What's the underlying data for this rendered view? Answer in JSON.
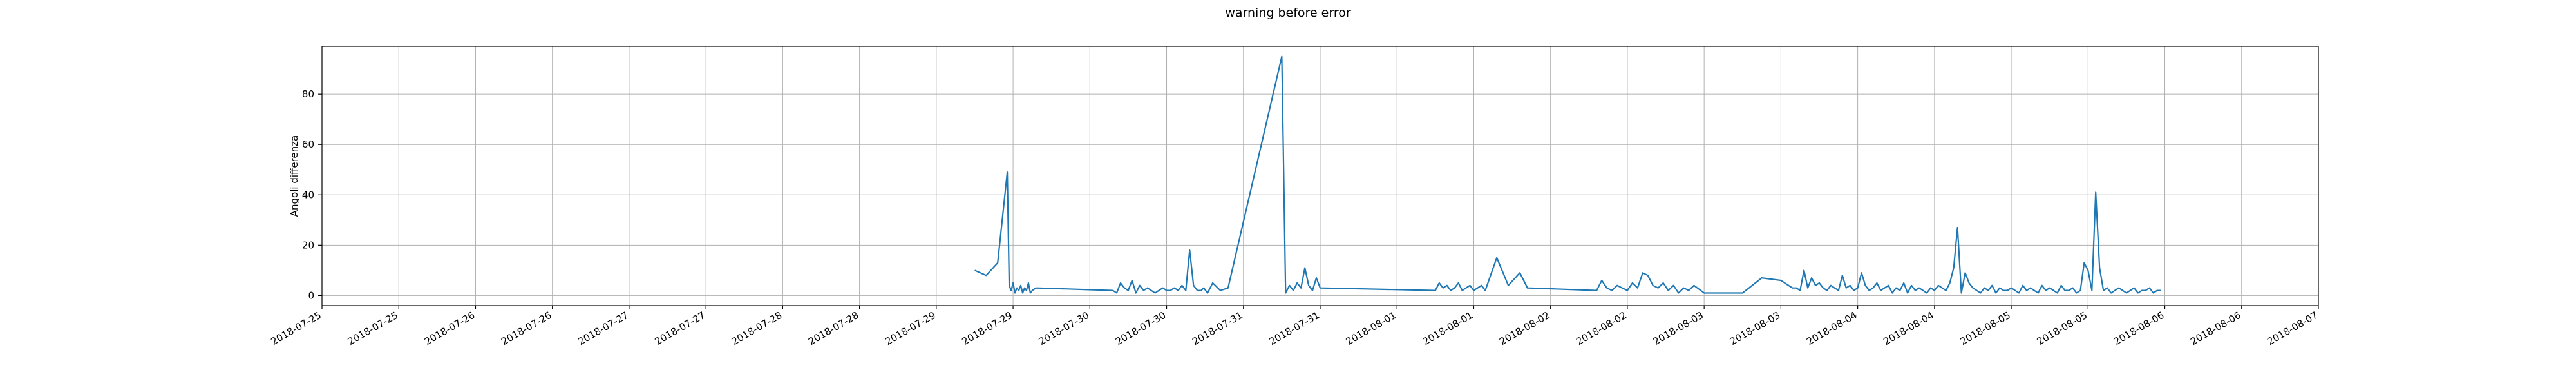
{
  "chart_data": {
    "type": "line",
    "title": "warning before error",
    "xlabel": "",
    "ylabel": "Angoli differenza",
    "xlim": [
      "2018-07-25T00:00",
      "2018-08-07T00:00"
    ],
    "ylim": [
      -4,
      99
    ],
    "grid": true,
    "x_ticks": [
      "2018-07-25T00:00",
      "2018-07-25T12:00",
      "2018-07-26T00:00",
      "2018-07-26T12:00",
      "2018-07-27T00:00",
      "2018-07-27T12:00",
      "2018-07-28T00:00",
      "2018-07-28T12:00",
      "2018-07-29T00:00",
      "2018-07-29T12:00",
      "2018-07-30T00:00",
      "2018-07-30T12:00",
      "2018-07-31T00:00",
      "2018-07-31T12:00",
      "2018-08-01T00:00",
      "2018-08-01T12:00",
      "2018-08-02T00:00",
      "2018-08-02T12:00",
      "2018-08-03T00:00",
      "2018-08-03T12:00",
      "2018-08-04T00:00",
      "2018-08-04T12:00",
      "2018-08-05T00:00",
      "2018-08-05T12:00",
      "2018-08-06T00:00",
      "2018-08-06T12:00",
      "2018-08-07T00:00"
    ],
    "x_tick_labels": [
      "2018-07-25",
      "2018-07-25",
      "2018-07-26",
      "2018-07-26",
      "2018-07-27",
      "2018-07-27",
      "2018-07-28",
      "2018-07-28",
      "2018-07-29",
      "2018-07-29",
      "2018-07-30",
      "2018-07-30",
      "2018-07-31",
      "2018-07-31",
      "2018-08-01",
      "2018-08-01",
      "2018-08-02",
      "2018-08-02",
      "2018-08-03",
      "2018-08-03",
      "2018-08-04",
      "2018-08-04",
      "2018-08-05",
      "2018-08-05",
      "2018-08-06",
      "2018-08-06",
      "2018-08-07"
    ],
    "y_ticks": [
      0,
      20,
      40,
      60,
      80
    ],
    "y_tick_labels": [
      "0",
      "20",
      "40",
      "60",
      "80"
    ],
    "series": [
      {
        "color": "#1f77b4",
        "x": [
          "2018-07-29T06:00",
          "2018-07-29T07:48",
          "2018-07-29T09:36",
          "2018-07-29T11:06",
          "2018-07-29T11:24",
          "2018-07-29T11:42",
          "2018-07-29T12:00",
          "2018-07-29T12:18",
          "2018-07-29T12:36",
          "2018-07-29T12:54",
          "2018-07-29T13:12",
          "2018-07-29T13:30",
          "2018-07-29T13:48",
          "2018-07-29T14:06",
          "2018-07-29T14:24",
          "2018-07-29T14:42",
          "2018-07-29T15:00",
          "2018-07-29T15:36",
          "2018-07-30T03:36",
          "2018-07-30T04:12",
          "2018-07-30T04:48",
          "2018-07-30T05:24",
          "2018-07-30T06:00",
          "2018-07-30T06:36",
          "2018-07-30T07:12",
          "2018-07-30T07:48",
          "2018-07-30T08:24",
          "2018-07-30T09:00",
          "2018-07-30T09:36",
          "2018-07-30T10:12",
          "2018-07-30T10:48",
          "2018-07-30T11:24",
          "2018-07-30T12:00",
          "2018-07-30T12:36",
          "2018-07-30T13:12",
          "2018-07-30T13:48",
          "2018-07-30T14:24",
          "2018-07-30T15:00",
          "2018-07-30T15:36",
          "2018-07-30T16:12",
          "2018-07-30T16:48",
          "2018-07-30T17:24",
          "2018-07-30T17:48",
          "2018-07-30T18:24",
          "2018-07-30T19:12",
          "2018-07-30T20:24",
          "2018-07-30T21:36",
          "2018-07-31T06:00",
          "2018-07-31T06:36",
          "2018-07-31T07:12",
          "2018-07-31T07:48",
          "2018-07-31T08:24",
          "2018-07-31T09:00",
          "2018-07-31T09:36",
          "2018-07-31T10:12",
          "2018-07-31T10:48",
          "2018-07-31T11:24",
          "2018-07-31T12:00",
          "2018-08-01T06:00",
          "2018-08-01T06:36",
          "2018-08-01T07:12",
          "2018-08-01T07:48",
          "2018-08-01T08:24",
          "2018-08-01T09:00",
          "2018-08-01T09:36",
          "2018-08-01T10:12",
          "2018-08-01T10:48",
          "2018-08-01T11:24",
          "2018-08-01T12:00",
          "2018-08-01T12:36",
          "2018-08-01T13:12",
          "2018-08-01T13:48",
          "2018-08-01T15:36",
          "2018-08-01T17:24",
          "2018-08-01T19:12",
          "2018-08-01T20:24",
          "2018-08-02T07:12",
          "2018-08-02T08:00",
          "2018-08-02T08:48",
          "2018-08-02T09:36",
          "2018-08-02T10:24",
          "2018-08-02T11:12",
          "2018-08-02T12:00",
          "2018-08-02T12:48",
          "2018-08-02T13:36",
          "2018-08-02T14:24",
          "2018-08-02T15:12",
          "2018-08-02T16:00",
          "2018-08-02T16:48",
          "2018-08-02T17:36",
          "2018-08-02T18:24",
          "2018-08-02T19:12",
          "2018-08-02T20:00",
          "2018-08-02T20:48",
          "2018-08-02T21:36",
          "2018-08-02T22:24",
          "2018-08-03T00:00",
          "2018-08-03T03:00",
          "2018-08-03T06:00",
          "2018-08-03T09:00",
          "2018-08-03T12:00",
          "2018-08-03T12:36",
          "2018-08-03T13:12",
          "2018-08-03T13:48",
          "2018-08-03T14:24",
          "2018-08-03T15:00",
          "2018-08-03T15:36",
          "2018-08-03T16:12",
          "2018-08-03T16:48",
          "2018-08-03T17:24",
          "2018-08-03T18:00",
          "2018-08-03T18:36",
          "2018-08-03T19:12",
          "2018-08-03T19:48",
          "2018-08-03T20:24",
          "2018-08-03T21:00",
          "2018-08-03T21:36",
          "2018-08-03T22:12",
          "2018-08-03T22:48",
          "2018-08-03T23:24",
          "2018-08-04T00:00",
          "2018-08-04T00:36",
          "2018-08-04T01:12",
          "2018-08-04T01:48",
          "2018-08-04T02:24",
          "2018-08-04T03:00",
          "2018-08-04T03:36",
          "2018-08-04T04:12",
          "2018-08-04T04:48",
          "2018-08-04T05:24",
          "2018-08-04T06:00",
          "2018-08-04T06:36",
          "2018-08-04T07:12",
          "2018-08-04T07:48",
          "2018-08-04T08:24",
          "2018-08-04T09:00",
          "2018-08-04T09:36",
          "2018-08-04T10:12",
          "2018-08-04T10:48",
          "2018-08-04T11:24",
          "2018-08-04T12:00",
          "2018-08-04T12:36",
          "2018-08-04T13:12",
          "2018-08-04T13:48",
          "2018-08-04T14:24",
          "2018-08-04T15:00",
          "2018-08-04T15:36",
          "2018-08-04T16:12",
          "2018-08-04T16:48",
          "2018-08-04T17:24",
          "2018-08-04T18:00",
          "2018-08-04T18:36",
          "2018-08-04T19:12",
          "2018-08-04T19:48",
          "2018-08-04T20:24",
          "2018-08-04T21:00",
          "2018-08-04T21:36",
          "2018-08-04T22:12",
          "2018-08-04T22:48",
          "2018-08-04T23:24",
          "2018-08-05T00:00",
          "2018-08-05T00:36",
          "2018-08-05T01:12",
          "2018-08-05T01:48",
          "2018-08-05T02:24",
          "2018-08-05T03:00",
          "2018-08-05T03:36",
          "2018-08-05T04:12",
          "2018-08-05T04:48",
          "2018-08-05T05:24",
          "2018-08-05T06:00",
          "2018-08-05T06:36",
          "2018-08-05T07:12",
          "2018-08-05T07:48",
          "2018-08-05T08:24",
          "2018-08-05T09:00",
          "2018-08-05T09:36",
          "2018-08-05T10:12",
          "2018-08-05T10:48",
          "2018-08-05T11:24",
          "2018-08-05T12:00",
          "2018-08-05T12:36",
          "2018-08-05T13:12",
          "2018-08-05T13:48",
          "2018-08-05T14:24",
          "2018-08-05T15:00",
          "2018-08-05T15:36",
          "2018-08-05T16:12",
          "2018-08-05T16:48",
          "2018-08-05T17:24",
          "2018-08-05T18:00",
          "2018-08-05T18:36",
          "2018-08-05T19:12",
          "2018-08-05T19:48",
          "2018-08-05T20:24",
          "2018-08-05T21:00",
          "2018-08-05T21:36",
          "2018-08-05T22:12",
          "2018-08-05T22:48",
          "2018-08-05T23:24"
        ],
        "y": [
          10,
          8,
          13,
          49,
          4,
          2,
          5,
          1,
          3,
          2,
          4,
          1,
          3,
          2,
          5,
          1,
          2,
          3,
          2,
          1,
          5,
          3,
          2,
          6,
          1,
          4,
          2,
          3,
          2,
          1,
          2,
          3,
          2,
          2,
          3,
          2,
          4,
          2,
          18,
          4,
          2,
          2,
          3,
          1,
          5,
          2,
          3,
          95,
          1,
          4,
          2,
          5,
          3,
          11,
          4,
          2,
          7,
          3,
          2,
          5,
          3,
          4,
          2,
          3,
          5,
          2,
          3,
          4,
          2,
          3,
          4,
          2,
          15,
          4,
          9,
          3,
          2,
          6,
          3,
          2,
          4,
          3,
          2,
          5,
          3,
          9,
          8,
          4,
          3,
          5,
          2,
          4,
          1,
          3,
          2,
          4,
          1,
          1,
          1,
          7,
          6,
          5,
          4,
          3,
          3,
          2,
          10,
          3,
          7,
          4,
          5,
          3,
          2,
          4,
          3,
          2,
          8,
          3,
          4,
          2,
          3,
          9,
          4,
          2,
          3,
          5,
          2,
          3,
          4,
          1,
          3,
          2,
          5,
          1,
          4,
          2,
          3,
          2,
          1,
          3,
          2,
          4,
          3,
          2,
          5,
          11,
          27,
          1,
          9,
          5,
          3,
          2,
          1,
          3,
          2,
          4,
          1,
          3,
          2,
          2,
          3,
          2,
          1,
          4,
          2,
          3,
          2,
          1,
          4,
          2,
          3,
          2,
          1,
          4,
          2,
          2,
          3,
          1,
          2,
          13,
          10,
          2,
          41,
          11,
          2,
          3,
          1,
          2,
          3,
          2,
          1,
          2,
          3,
          1,
          2,
          2,
          3,
          1,
          2,
          2
        ]
      }
    ]
  }
}
